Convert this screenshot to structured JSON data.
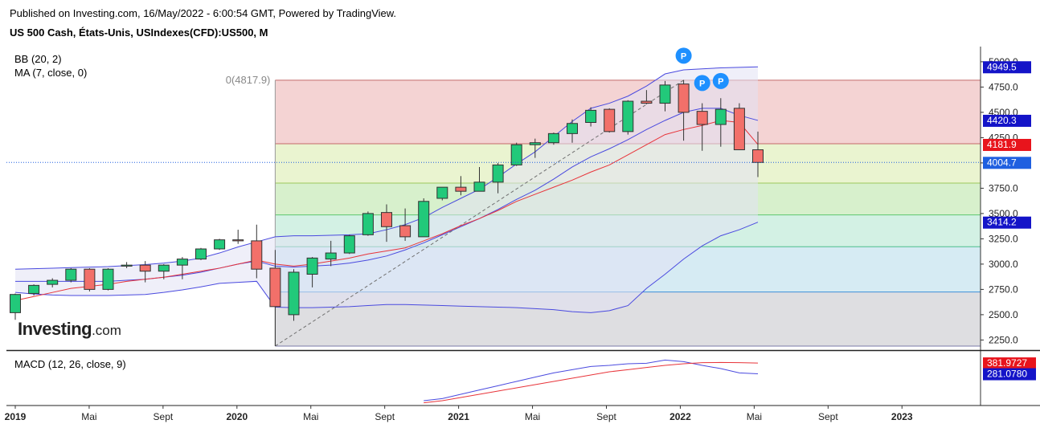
{
  "header": {
    "published": "Published on Investing.com, 16/May/2022 - 6:00:54 GMT, Powered by TradingView.",
    "instrument": "US 500 Cash, États-Unis, USIndexes(CFD):US500, M"
  },
  "indicators": {
    "bb": "BB (20, 2)",
    "ma": "MA (7, close, 0)",
    "macd": "MACD (12, 26, close, 9)"
  },
  "logo": {
    "brand": "Investing",
    "suffix": ".com"
  },
  "colors": {
    "up": "#22c97a",
    "down": "#f2706a",
    "bb_line": "#4a4adf",
    "bb_fill": "#e2e2f4",
    "ma_line": "#e8343a",
    "macd_line": "#4a4adf",
    "signal_line": "#e8343a",
    "price_tag": "#1f5fe0",
    "price_label_red": "#e8141c",
    "price_label_blue": "#1414c8",
    "marker": "#1e90ff"
  },
  "chart_data": {
    "type": "candlestick",
    "timeframe": "M",
    "ylim": [
      2150,
      5150
    ],
    "yticks": [
      "5000.0",
      "4750.0",
      "4500.0",
      "4250.0",
      "4000.0",
      "3750.0",
      "3500.0",
      "3250.0",
      "3000.0",
      "2750.0",
      "2500.0",
      "2250.0"
    ],
    "xticks": [
      "2019",
      "Mai",
      "Sept",
      "2020",
      "Mai",
      "Sept",
      "2021",
      "Mai",
      "Sept",
      "2022",
      "Mai",
      "Sept",
      "2023"
    ],
    "candles": [
      {
        "o": 2520,
        "h": 2710,
        "l": 2450,
        "c": 2700
      },
      {
        "o": 2710,
        "h": 2800,
        "l": 2690,
        "c": 2790
      },
      {
        "o": 2800,
        "h": 2860,
        "l": 2770,
        "c": 2840
      },
      {
        "o": 2840,
        "h": 2960,
        "l": 2820,
        "c": 2950
      },
      {
        "o": 2950,
        "h": 2960,
        "l": 2730,
        "c": 2750
      },
      {
        "o": 2750,
        "h": 2960,
        "l": 2740,
        "c": 2950
      },
      {
        "o": 2980,
        "h": 3020,
        "l": 2960,
        "c": 2990
      },
      {
        "o": 2990,
        "h": 3030,
        "l": 2820,
        "c": 2930
      },
      {
        "o": 2930,
        "h": 3000,
        "l": 2850,
        "c": 2990
      },
      {
        "o": 2990,
        "h": 3070,
        "l": 2850,
        "c": 3050
      },
      {
        "o": 3050,
        "h": 3160,
        "l": 3040,
        "c": 3150
      },
      {
        "o": 3150,
        "h": 3250,
        "l": 3140,
        "c": 3240
      },
      {
        "o": 3240,
        "h": 3340,
        "l": 3200,
        "c": 3230
      },
      {
        "o": 3230,
        "h": 3390,
        "l": 2860,
        "c": 2950
      },
      {
        "o": 2960,
        "h": 3140,
        "l": 2190,
        "c": 2580
      },
      {
        "o": 2500,
        "h": 2950,
        "l": 2440,
        "c": 2920
      },
      {
        "o": 2900,
        "h": 3070,
        "l": 2770,
        "c": 3060
      },
      {
        "o": 3050,
        "h": 3230,
        "l": 2980,
        "c": 3110
      },
      {
        "o": 3110,
        "h": 3290,
        "l": 3100,
        "c": 3280
      },
      {
        "o": 3290,
        "h": 3520,
        "l": 3280,
        "c": 3500
      },
      {
        "o": 3510,
        "h": 3590,
        "l": 3220,
        "c": 3370
      },
      {
        "o": 3380,
        "h": 3550,
        "l": 3230,
        "c": 3270
      },
      {
        "o": 3270,
        "h": 3650,
        "l": 3270,
        "c": 3620
      },
      {
        "o": 3650,
        "h": 3760,
        "l": 3630,
        "c": 3760
      },
      {
        "o": 3760,
        "h": 3870,
        "l": 3680,
        "c": 3720
      },
      {
        "o": 3720,
        "h": 3960,
        "l": 3720,
        "c": 3810
      },
      {
        "o": 3810,
        "h": 4000,
        "l": 3700,
        "c": 3980
      },
      {
        "o": 3980,
        "h": 4200,
        "l": 3970,
        "c": 4180
      },
      {
        "o": 4180,
        "h": 4240,
        "l": 4050,
        "c": 4200
      },
      {
        "o": 4200,
        "h": 4300,
        "l": 4180,
        "c": 4290
      },
      {
        "o": 4290,
        "h": 4430,
        "l": 4200,
        "c": 4390
      },
      {
        "o": 4400,
        "h": 4550,
        "l": 4360,
        "c": 4520
      },
      {
        "o": 4530,
        "h": 4540,
        "l": 4300,
        "c": 4310
      },
      {
        "o": 4310,
        "h": 4620,
        "l": 4280,
        "c": 4610
      },
      {
        "o": 4610,
        "h": 4720,
        "l": 4580,
        "c": 4590
      },
      {
        "o": 4590,
        "h": 4810,
        "l": 4510,
        "c": 4770
      },
      {
        "o": 4780,
        "h": 4820,
        "l": 4220,
        "c": 4500
      },
      {
        "o": 4510,
        "h": 4590,
        "l": 4120,
        "c": 4380
      },
      {
        "o": 4380,
        "h": 4640,
        "l": 4160,
        "c": 4530
      },
      {
        "o": 4540,
        "h": 4590,
        "l": 4130,
        "c": 4130
      },
      {
        "o": 4130,
        "h": 4310,
        "l": 3860,
        "c": 4005
      }
    ],
    "bollinger": {
      "upper": [
        2950,
        2955,
        2960,
        2965,
        2970,
        2975,
        2985,
        2995,
        3010,
        3030,
        3060,
        3110,
        3170,
        3220,
        3270,
        3280,
        3280,
        3285,
        3290,
        3300,
        3340,
        3390,
        3460,
        3560,
        3650,
        3740,
        3860,
        3990,
        4110,
        4260,
        4410,
        4540,
        4590,
        4660,
        4760,
        4880,
        4920,
        4930,
        4940,
        4945,
        4949.5
      ],
      "lower": [
        2720,
        2705,
        2695,
        2690,
        2690,
        2690,
        2695,
        2700,
        2720,
        2745,
        2775,
        2810,
        2820,
        2830,
        2575,
        2570,
        2570,
        2575,
        2580,
        2590,
        2600,
        2600,
        2595,
        2590,
        2585,
        2580,
        2575,
        2570,
        2560,
        2550,
        2530,
        2520,
        2540,
        2590,
        2760,
        2900,
        3050,
        3180,
        3280,
        3340,
        3414.2
      ],
      "basis": [
        2830,
        2830,
        2830,
        2830,
        2830,
        2830,
        2840,
        2850,
        2870,
        2890,
        2920,
        2960,
        3000,
        3030,
        2980,
        2970,
        2980,
        2990,
        3010,
        3040,
        3080,
        3140,
        3210,
        3290,
        3370,
        3450,
        3540,
        3640,
        3730,
        3840,
        3960,
        4060,
        4140,
        4230,
        4330,
        4420,
        4500,
        4540,
        4540,
        4470,
        4420.3
      ]
    },
    "ma": [
      2640,
      2680,
      2720,
      2760,
      2780,
      2800,
      2830,
      2850,
      2870,
      2900,
      2930,
      2960,
      3000,
      3040,
      3000,
      2980,
      3000,
      3030,
      3060,
      3100,
      3130,
      3160,
      3230,
      3300,
      3380,
      3450,
      3530,
      3620,
      3690,
      3760,
      3830,
      3910,
      3980,
      4080,
      4180,
      4280,
      4330,
      4370,
      4420,
      4400,
      4181.9
    ],
    "fibonacci": {
      "label": "0(4817.9)",
      "levels": [
        4817.9,
        4189.3,
        3800.4,
        3486,
        3171.8,
        2724.4,
        2190
      ],
      "fills": [
        "#f4d3d3",
        "#eaf4d0",
        "#d7f0cc",
        "#d3f1e4",
        "#d6ebf3",
        "#dedee1"
      ],
      "lines": [
        "#c46a6a",
        "#c46a6a",
        "#9cc95c",
        "#5cc76e",
        "#4cbf8e",
        "#3d8fd6",
        "#7a7aa8"
      ]
    },
    "price_labels": [
      {
        "value": 4949.5,
        "text": "4949.5",
        "kind": "blue"
      },
      {
        "value": 4420.3,
        "text": "4420.3",
        "kind": "blue"
      },
      {
        "value": 4181.9,
        "text": "4181.9",
        "kind": "red"
      },
      {
        "value": 4004.7,
        "text": "4004.7",
        "kind": "tag"
      },
      {
        "value": 3414.2,
        "text": "3414.2",
        "kind": "blue"
      }
    ],
    "markers": [
      {
        "label": "P",
        "value": 5060,
        "index": 36
      },
      {
        "label": "P",
        "value": 4790,
        "index": 37
      },
      {
        "label": "P",
        "value": 4810,
        "index": 38
      }
    ],
    "macd": {
      "ylim": [
        0,
        450
      ],
      "macd": [
        30,
        50,
        90,
        130,
        170,
        210,
        250,
        290,
        320,
        350,
        360,
        375,
        380,
        410,
        395,
        360,
        330,
        290,
        281.078
      ],
      "signal": [
        10,
        30,
        60,
        90,
        120,
        150,
        180,
        210,
        240,
        270,
        300,
        320,
        340,
        360,
        375,
        385,
        387,
        385,
        381.9727
      ],
      "start_index": 22,
      "labels": [
        {
          "value": 381.9727,
          "text": "381.9727",
          "kind": "red"
        },
        {
          "value": 281.078,
          "text": "281.0780",
          "kind": "blue"
        }
      ]
    }
  }
}
